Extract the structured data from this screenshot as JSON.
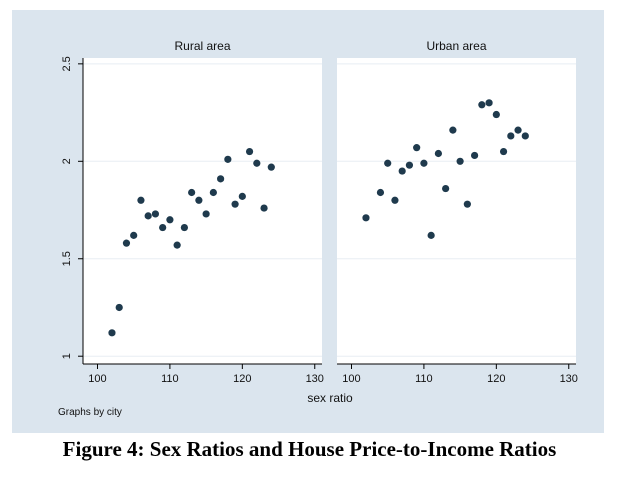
{
  "caption": "Figure 4:  Sex Ratios and House Price-to-Income Ratios",
  "note": "Graphs by city",
  "colors": {
    "background": "#dbe5ee",
    "plot_bg": "#ffffff",
    "strip_bg": "#dbe5ee",
    "grid": "#e8eef3",
    "marker": "#1f3a4d"
  },
  "chart_data": {
    "type": "scatter",
    "xlabel": "sex ratio",
    "ylabel": "",
    "xlim": [
      98,
      131
    ],
    "ylim": [
      0.96,
      2.53
    ],
    "xticks": [
      100,
      110,
      120,
      130
    ],
    "yticks": [
      1,
      1.5,
      2,
      2.5
    ],
    "xtick_labels": [
      "100",
      "110",
      "120",
      "130"
    ],
    "ytick_labels": [
      "1",
      "1.5",
      "2",
      "2.5"
    ],
    "grid": true,
    "panels": [
      {
        "title": "Rural area",
        "x": [
          102,
          103,
          104,
          105,
          106,
          107,
          108,
          109,
          110,
          111,
          112,
          113,
          114,
          115,
          116,
          117,
          118,
          119,
          120,
          121,
          122,
          123,
          124
        ],
        "y": [
          1.12,
          1.25,
          1.58,
          1.62,
          1.8,
          1.72,
          1.73,
          1.66,
          1.7,
          1.57,
          1.66,
          1.84,
          1.8,
          1.73,
          1.84,
          1.91,
          2.01,
          1.78,
          1.82,
          2.05,
          1.99,
          1.76,
          1.97
        ]
      },
      {
        "title": "Urban area",
        "x": [
          102,
          104,
          105,
          106,
          107,
          108,
          109,
          110,
          111,
          112,
          113,
          114,
          115,
          116,
          117,
          118,
          119,
          120,
          121,
          122,
          123,
          124
        ],
        "y": [
          1.71,
          1.84,
          1.99,
          1.8,
          1.95,
          1.98,
          2.07,
          1.99,
          1.62,
          2.04,
          1.86,
          2.16,
          2.0,
          1.78,
          2.03,
          2.29,
          2.3,
          2.24,
          2.05,
          2.13,
          2.16,
          2.13
        ]
      }
    ]
  }
}
